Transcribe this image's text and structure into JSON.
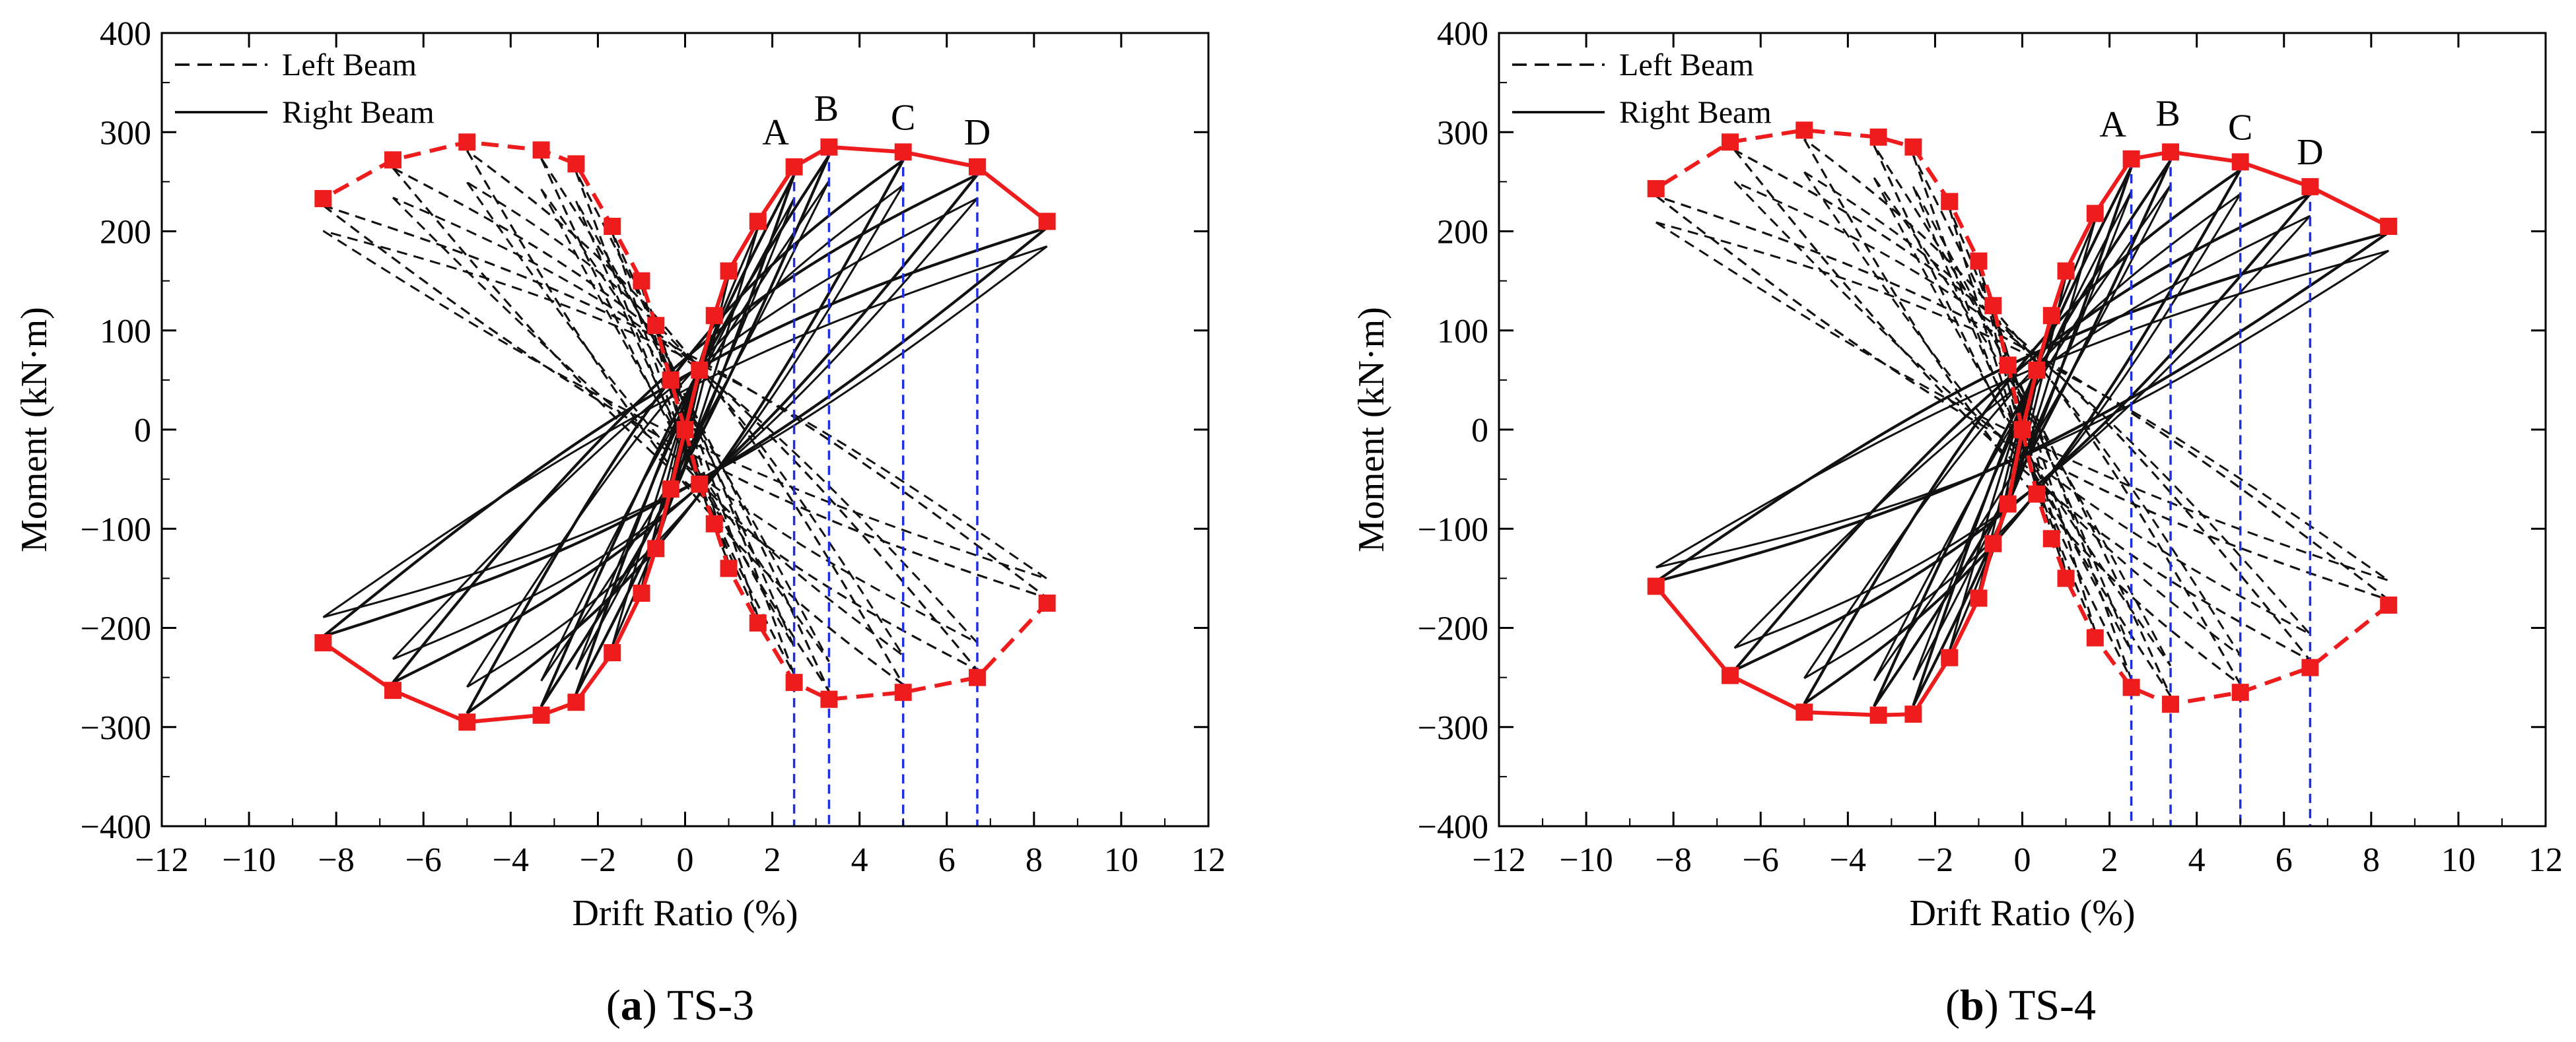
{
  "chart_data": [
    {
      "type": "line",
      "panel_id": "a",
      "caption_letter": "a",
      "caption_text": "TS-3",
      "xlabel": "Drift Ratio (%)",
      "ylabel": "Moment (kN·m)",
      "xlim": [
        -12,
        12
      ],
      "ylim": [
        -400,
        400
      ],
      "xticks": [
        -12,
        -10,
        -8,
        -6,
        -4,
        -2,
        0,
        2,
        4,
        6,
        8,
        10,
        12
      ],
      "yticks": [
        -400,
        -300,
        -200,
        -100,
        0,
        100,
        200,
        300,
        400
      ],
      "legend": [
        {
          "label": "Left Beam",
          "style": "dashed"
        },
        {
          "label": "Right Beam",
          "style": "solid"
        }
      ],
      "envelope_color": "#ee1c1c",
      "guide_color": "#1f2fe0",
      "point_labels": [
        {
          "label": "A",
          "x": 2.5,
          "y_top": 265
        },
        {
          "label": "B",
          "x": 3.3,
          "y_top": 285
        },
        {
          "label": "C",
          "x": 5.0,
          "y_top": 280
        },
        {
          "label": "D",
          "x": 6.7,
          "y_top": 265
        }
      ],
      "guide_lines": [
        {
          "x": 2.5,
          "y_top": 265,
          "y_bottom": -255
        },
        {
          "x": 3.3,
          "y_top": 285,
          "y_bottom": -272
        },
        {
          "x": 5.0,
          "y_top": 280,
          "y_bottom": -265
        },
        {
          "x": 6.7,
          "y_top": 265,
          "y_bottom": -250
        }
      ],
      "series": [
        {
          "name": "Right Beam envelope (+)",
          "style": "solid",
          "points": [
            [
              0,
              0
            ],
            [
              0.33,
              60
            ],
            [
              0.67,
              115
            ],
            [
              1.0,
              160
            ],
            [
              1.67,
              210
            ],
            [
              2.5,
              265
            ],
            [
              3.3,
              285
            ],
            [
              5.0,
              280
            ],
            [
              6.7,
              265
            ],
            [
              8.3,
              210
            ]
          ]
        },
        {
          "name": "Right Beam envelope (-)",
          "style": "solid",
          "points": [
            [
              0,
              0
            ],
            [
              -0.33,
              -60
            ],
            [
              -0.67,
              -120
            ],
            [
              -1.0,
              -165
            ],
            [
              -1.67,
              -225
            ],
            [
              -2.5,
              -275
            ],
            [
              -3.3,
              -288
            ],
            [
              -5.0,
              -295
            ],
            [
              -6.7,
              -263
            ],
            [
              -8.3,
              -215
            ]
          ]
        },
        {
          "name": "Left Beam envelope (-)",
          "style": "dashed",
          "points": [
            [
              0,
              0
            ],
            [
              -0.33,
              50
            ],
            [
              -0.67,
              105
            ],
            [
              -1.0,
              150
            ],
            [
              -1.67,
              205
            ],
            [
              -2.5,
              268
            ],
            [
              -3.3,
              282
            ],
            [
              -5.0,
              290
            ],
            [
              -6.7,
              272
            ],
            [
              -8.3,
              233
            ]
          ]
        },
        {
          "name": "Left Beam envelope (+)",
          "style": "dashed",
          "points": [
            [
              0,
              0
            ],
            [
              0.33,
              -55
            ],
            [
              0.67,
              -95
            ],
            [
              1.0,
              -140
            ],
            [
              1.67,
              -195
            ],
            [
              2.5,
              -255
            ],
            [
              3.3,
              -272
            ],
            [
              5.0,
              -265
            ],
            [
              6.7,
              -250
            ],
            [
              8.3,
              -175
            ]
          ]
        }
      ],
      "cycle_amplitudes": [
        0.5,
        1.0,
        1.67,
        2.5,
        3.3,
        5.0,
        6.7,
        8.3
      ]
    },
    {
      "type": "line",
      "panel_id": "b",
      "caption_letter": "b",
      "caption_text": "TS-4",
      "xlabel": "Drift Ratio (%)",
      "ylabel": "Moment (kN·m)",
      "xlim": [
        -12,
        12
      ],
      "ylim": [
        -400,
        400
      ],
      "xticks": [
        -12,
        -10,
        -8,
        -6,
        -4,
        -2,
        0,
        2,
        4,
        6,
        8,
        10,
        12
      ],
      "yticks": [
        -400,
        -300,
        -200,
        -100,
        0,
        100,
        200,
        300,
        400
      ],
      "legend": [
        {
          "label": "Left Beam",
          "style": "dashed"
        },
        {
          "label": "Right Beam",
          "style": "solid"
        }
      ],
      "envelope_color": "#ee1c1c",
      "guide_color": "#1f2fe0",
      "point_labels": [
        {
          "label": "A",
          "x": 2.5,
          "y_top": 273
        },
        {
          "label": "B",
          "x": 3.4,
          "y_top": 280
        },
        {
          "label": "C",
          "x": 5.0,
          "y_top": 270
        },
        {
          "label": "D",
          "x": 6.6,
          "y_top": 245
        }
      ],
      "guide_lines": [
        {
          "x": 2.5,
          "y_top": 273,
          "y_bottom": -260
        },
        {
          "x": 3.4,
          "y_top": 280,
          "y_bottom": -277
        },
        {
          "x": 5.0,
          "y_top": 270,
          "y_bottom": -265
        },
        {
          "x": 6.6,
          "y_top": 245,
          "y_bottom": -240
        }
      ],
      "series": [
        {
          "name": "Right Beam envelope (+)",
          "style": "solid",
          "points": [
            [
              0,
              0
            ],
            [
              0.33,
              60
            ],
            [
              0.67,
              115
            ],
            [
              1.0,
              160
            ],
            [
              1.67,
              218
            ],
            [
              2.5,
              273
            ],
            [
              3.4,
              280
            ],
            [
              5.0,
              270
            ],
            [
              6.6,
              245
            ],
            [
              8.4,
              205
            ]
          ]
        },
        {
          "name": "Right Beam envelope (-)",
          "style": "solid",
          "points": [
            [
              0,
              0
            ],
            [
              -0.33,
              -75
            ],
            [
              -0.67,
              -115
            ],
            [
              -1.0,
              -170
            ],
            [
              -1.67,
              -230
            ],
            [
              -2.5,
              -287
            ],
            [
              -3.3,
              -288
            ],
            [
              -5.0,
              -285
            ],
            [
              -6.7,
              -248
            ],
            [
              -8.4,
              -158
            ]
          ]
        },
        {
          "name": "Left Beam envelope (-)",
          "style": "dashed",
          "points": [
            [
              0,
              0
            ],
            [
              -0.33,
              65
            ],
            [
              -0.67,
              125
            ],
            [
              -1.0,
              170
            ],
            [
              -1.67,
              230
            ],
            [
              -2.5,
              285
            ],
            [
              -3.3,
              295
            ],
            [
              -5.0,
              302
            ],
            [
              -6.7,
              290
            ],
            [
              -8.4,
              243
            ]
          ]
        },
        {
          "name": "Left Beam envelope (+)",
          "style": "dashed",
          "points": [
            [
              0,
              0
            ],
            [
              0.33,
              -65
            ],
            [
              0.67,
              -110
            ],
            [
              1.0,
              -150
            ],
            [
              1.67,
              -210
            ],
            [
              2.5,
              -260
            ],
            [
              3.4,
              -277
            ],
            [
              5.0,
              -265
            ],
            [
              6.6,
              -240
            ],
            [
              8.4,
              -177
            ]
          ]
        }
      ],
      "cycle_amplitudes": [
        0.5,
        1.0,
        1.67,
        2.5,
        3.4,
        5.0,
        6.6,
        8.4
      ]
    }
  ]
}
